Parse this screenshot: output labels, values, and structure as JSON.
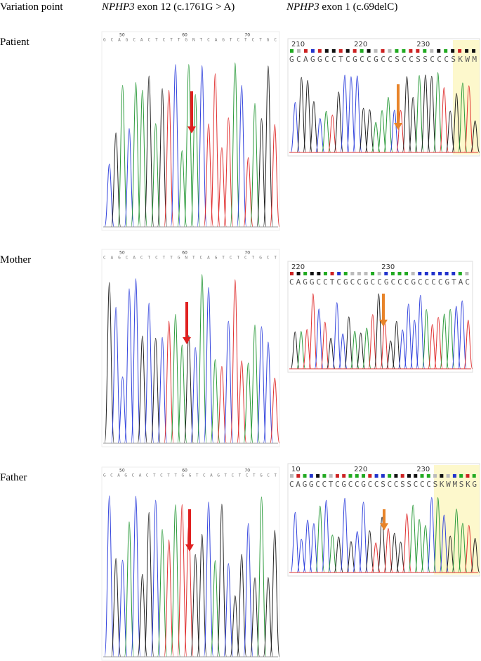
{
  "header": {
    "variation_point": "Variation point",
    "columns": [
      {
        "gene": "NPHP3",
        "text": " exon 12 (c.1761G > A)"
      },
      {
        "gene": "NPHP3",
        "text": " exon 1 (c.69delC)"
      }
    ]
  },
  "rows": [
    {
      "label": "Patient",
      "panels": [
        {
          "ruler": [
            "50",
            "60",
            "70"
          ],
          "sequence": "GCAGCACTCTTGNTCAGTCTCTGC"
        },
        {
          "ruler": [
            "210",
            "220",
            "230"
          ],
          "sequence": "GCAGGCCTCGCCGCCSCCSSCCCSKWM"
        }
      ]
    },
    {
      "label": "Mother",
      "panels": [
        {
          "ruler": [
            "50",
            "60",
            "70"
          ],
          "sequence": "CAGCACTCTTGNTCAGTCTCTGCT"
        },
        {
          "ruler": [
            "220",
            "230"
          ],
          "sequence": "CAGGCCTCGCCGCCGCCCGCCCCGTAC"
        }
      ]
    },
    {
      "label": "Father",
      "panels": [
        {
          "ruler": [
            "50",
            "60",
            "70"
          ],
          "sequence": "GCAGCACTCTTGGTCAGTCTCTGCT"
        },
        {
          "ruler": [
            "10",
            "220",
            "230"
          ],
          "sequence": "CAGGCCTCGCCGCCSCCSSCCCSKWMSKG"
        }
      ]
    }
  ]
}
